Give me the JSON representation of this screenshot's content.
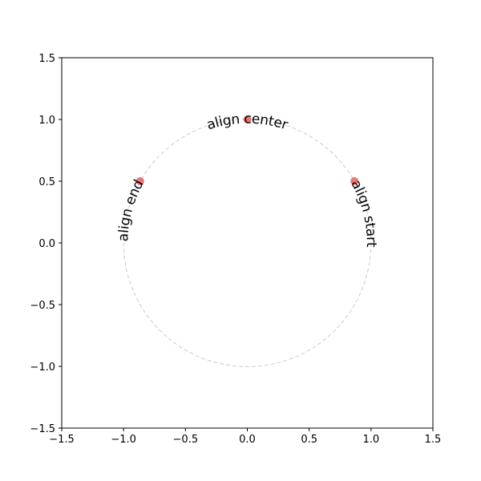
{
  "chart_data": {
    "type": "scatter",
    "x": [
      0,
      -0.866,
      0.866
    ],
    "y": [
      1,
      0.5,
      0.5
    ],
    "labels": [
      "align center",
      "align end",
      "align start"
    ],
    "label_align": [
      "center",
      "end",
      "start"
    ],
    "color": "#e8686b",
    "circle": {
      "radius": 1,
      "color": "#cccccc",
      "linestyle": "dashed"
    },
    "xlim": [
      -1.5,
      1.5
    ],
    "ylim": [
      -1.5,
      1.5
    ],
    "xticks": [
      {
        "value": -1.5,
        "label": "−1.5"
      },
      {
        "value": -1.0,
        "label": "−1.0"
      },
      {
        "value": -0.5,
        "label": "−0.5"
      },
      {
        "value": 0,
        "label": "0.0"
      },
      0.5,
      {
        "value": 1.0,
        "label": "1.0"
      },
      1.5
    ],
    "yticks": [
      {
        "value": -1.5,
        "label": "−1.5"
      },
      {
        "value": -1.0,
        "label": "−1.0"
      },
      {
        "value": -0.5,
        "label": "−0.5"
      },
      {
        "value": 0,
        "label": "0.0"
      },
      0.5,
      {
        "value": 1.0,
        "label": "1.0"
      },
      1.5
    ]
  }
}
